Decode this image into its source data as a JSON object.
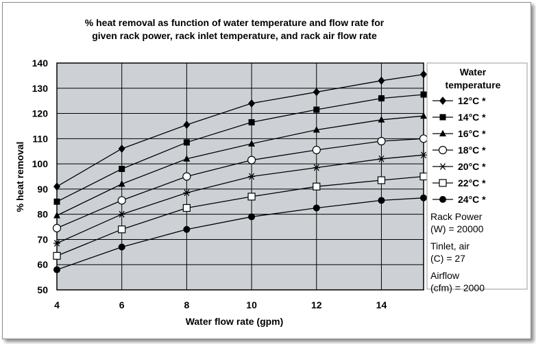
{
  "chart_data": {
    "type": "line",
    "title_lines": [
      "% heat removal as function of water temperature and flow rate for",
      "given rack power, rack inlet temperature, and rack air flow rate"
    ],
    "xlabel": "Water flow rate (gpm)",
    "ylabel": "% heat removal",
    "xlim": [
      4,
      15.3
    ],
    "ylim": [
      50,
      140
    ],
    "xticks": [
      4,
      6,
      8,
      10,
      12,
      14
    ],
    "yticks": [
      50,
      60,
      70,
      80,
      90,
      100,
      110,
      120,
      130,
      140
    ],
    "grid": true,
    "legend_title_lines": [
      "Water",
      "temperature"
    ],
    "x": [
      4,
      6,
      8,
      10,
      12,
      14,
      15.3
    ],
    "series": [
      {
        "name": "12°C *",
        "marker": "diamond",
        "values": [
          91,
          106,
          115.5,
          124,
          128.5,
          133,
          135.5
        ]
      },
      {
        "name": "14°C *",
        "marker": "square-filled",
        "values": [
          85,
          98,
          108.5,
          116.5,
          121.5,
          126,
          127.5
        ]
      },
      {
        "name": "16°C *",
        "marker": "triangle",
        "values": [
          79.5,
          92,
          102,
          108,
          113.5,
          117.5,
          119
        ]
      },
      {
        "name": "18°C *",
        "marker": "circle-open",
        "values": [
          74.5,
          85.5,
          95,
          101.5,
          105.5,
          109,
          110
        ]
      },
      {
        "name": "20°C *",
        "marker": "asterisk",
        "values": [
          68.5,
          80,
          88.5,
          95,
          98.5,
          102,
          103.5
        ]
      },
      {
        "name": "22°C *",
        "marker": "square-open",
        "values": [
          63.5,
          74,
          82.5,
          87,
          91,
          93.5,
          95
        ]
      },
      {
        "name": "24°C *",
        "marker": "circle-filled",
        "values": [
          58,
          67,
          74,
          79,
          82.5,
          85.5,
          86.5
        ]
      }
    ],
    "notes": [
      [
        "Rack Power",
        "(W) = 20000"
      ],
      [
        "Tinlet, air",
        "(C) = 27"
      ],
      [
        "Airflow",
        "(cfm) = 2000"
      ]
    ]
  }
}
